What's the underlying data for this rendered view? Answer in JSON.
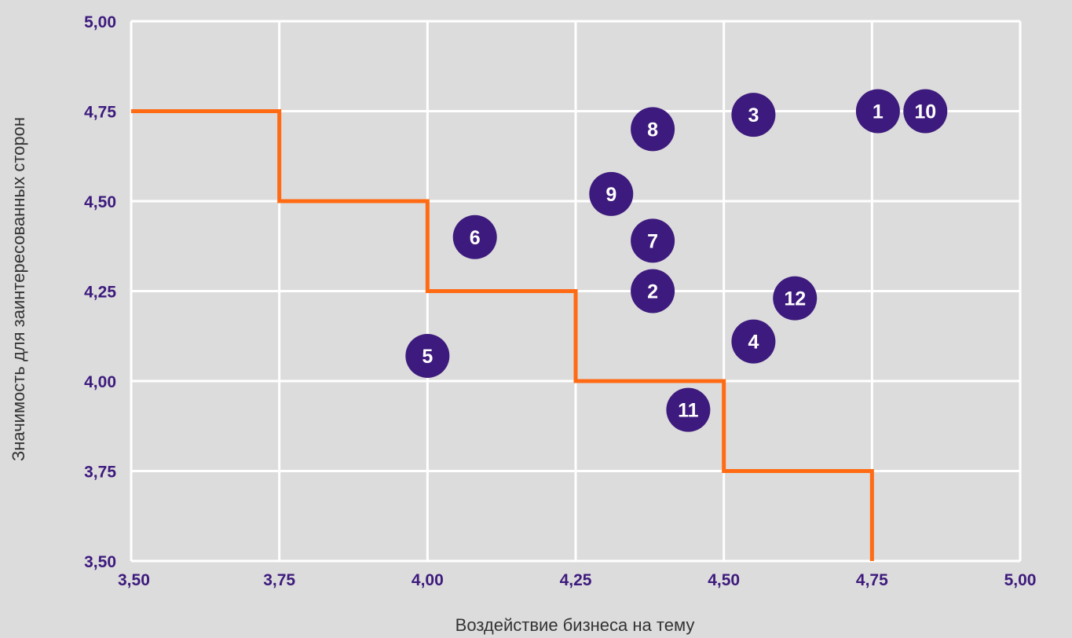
{
  "colors": {
    "background": "#dcdcdc",
    "grid": "#ffffff",
    "tick_label": "#3d1a7d",
    "axis_title": "#333333",
    "threshold_line": "#ff6a13",
    "marker_fill": "#3d1a7d",
    "marker_text": "#ffffff"
  },
  "chart_data": {
    "type": "scatter",
    "title": "",
    "xlabel": "Воздействие бизнеса на тему",
    "ylabel": "Значимость для заинтересованных сторон",
    "xlim": [
      3.5,
      5.0
    ],
    "ylim": [
      3.5,
      5.0
    ],
    "grid": true,
    "x_ticks": [
      3.5,
      3.75,
      4.0,
      4.25,
      4.5,
      4.75,
      5.0
    ],
    "x_tick_labels": [
      "3,50",
      "3,75",
      "4,00",
      "4,25",
      "4,50",
      "4,75",
      "5,00"
    ],
    "y_ticks": [
      3.5,
      3.75,
      4.0,
      4.25,
      4.5,
      4.75,
      5.0
    ],
    "y_tick_labels": [
      "3,50",
      "3,75",
      "4,00",
      "4,25",
      "4,50",
      "4,75",
      "5,00"
    ],
    "points": [
      {
        "label": "1",
        "x": 4.76,
        "y": 4.75
      },
      {
        "label": "2",
        "x": 4.38,
        "y": 4.25
      },
      {
        "label": "3",
        "x": 4.55,
        "y": 4.74
      },
      {
        "label": "4",
        "x": 4.55,
        "y": 4.11
      },
      {
        "label": "5",
        "x": 4.0,
        "y": 4.07
      },
      {
        "label": "6",
        "x": 4.08,
        "y": 4.4
      },
      {
        "label": "7",
        "x": 4.38,
        "y": 4.39
      },
      {
        "label": "8",
        "x": 4.38,
        "y": 4.7
      },
      {
        "label": "9",
        "x": 4.31,
        "y": 4.52
      },
      {
        "label": "10",
        "x": 4.84,
        "y": 4.75
      },
      {
        "label": "11",
        "x": 4.44,
        "y": 3.92
      },
      {
        "label": "12",
        "x": 4.62,
        "y": 4.23
      }
    ],
    "threshold_line": [
      [
        3.5,
        4.75
      ],
      [
        3.75,
        4.75
      ],
      [
        3.75,
        4.5
      ],
      [
        4.0,
        4.5
      ],
      [
        4.0,
        4.25
      ],
      [
        4.25,
        4.25
      ],
      [
        4.25,
        4.0
      ],
      [
        4.5,
        4.0
      ],
      [
        4.5,
        3.75
      ],
      [
        4.75,
        3.75
      ],
      [
        4.75,
        3.5
      ]
    ]
  }
}
